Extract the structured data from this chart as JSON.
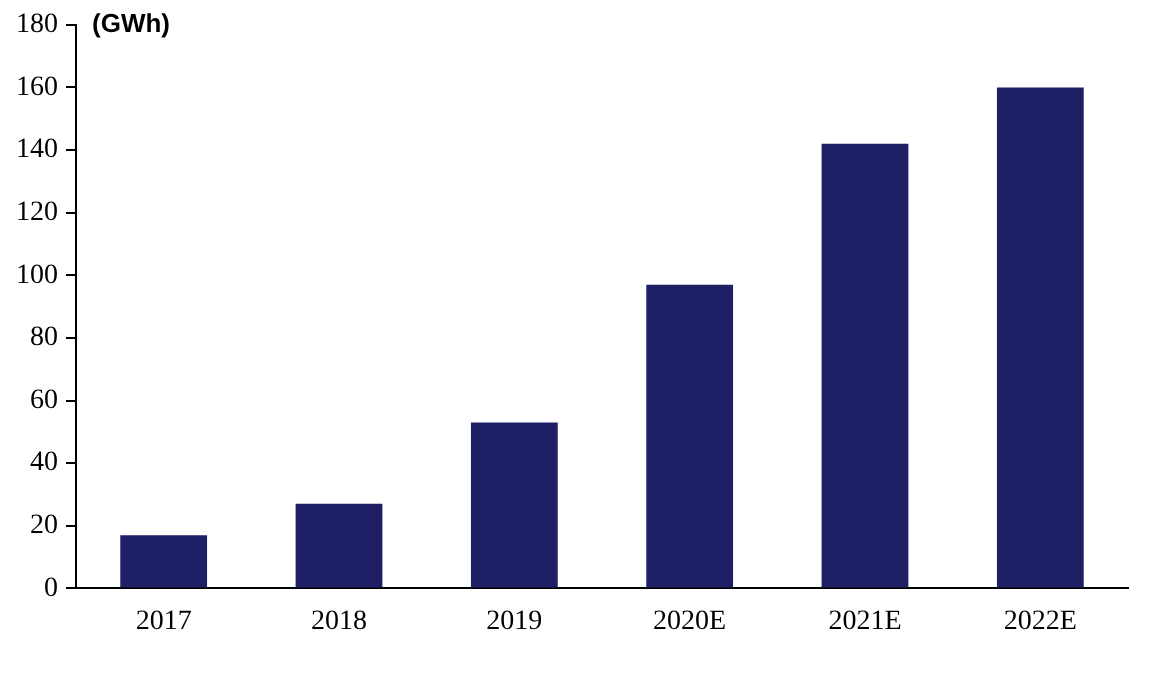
{
  "chart_data": {
    "type": "bar",
    "ylabel": "(GWh)",
    "categories": [
      "2017",
      "2018",
      "2019",
      "2020E",
      "2021E",
      "2022E"
    ],
    "values": [
      17,
      27,
      53,
      97,
      142,
      160
    ],
    "color": "#1f1f66",
    "ylim": [
      0,
      180
    ],
    "yticks": [
      0,
      20,
      40,
      60,
      80,
      100,
      120,
      140,
      160,
      180
    ],
    "grid": false,
    "legend": false
  }
}
